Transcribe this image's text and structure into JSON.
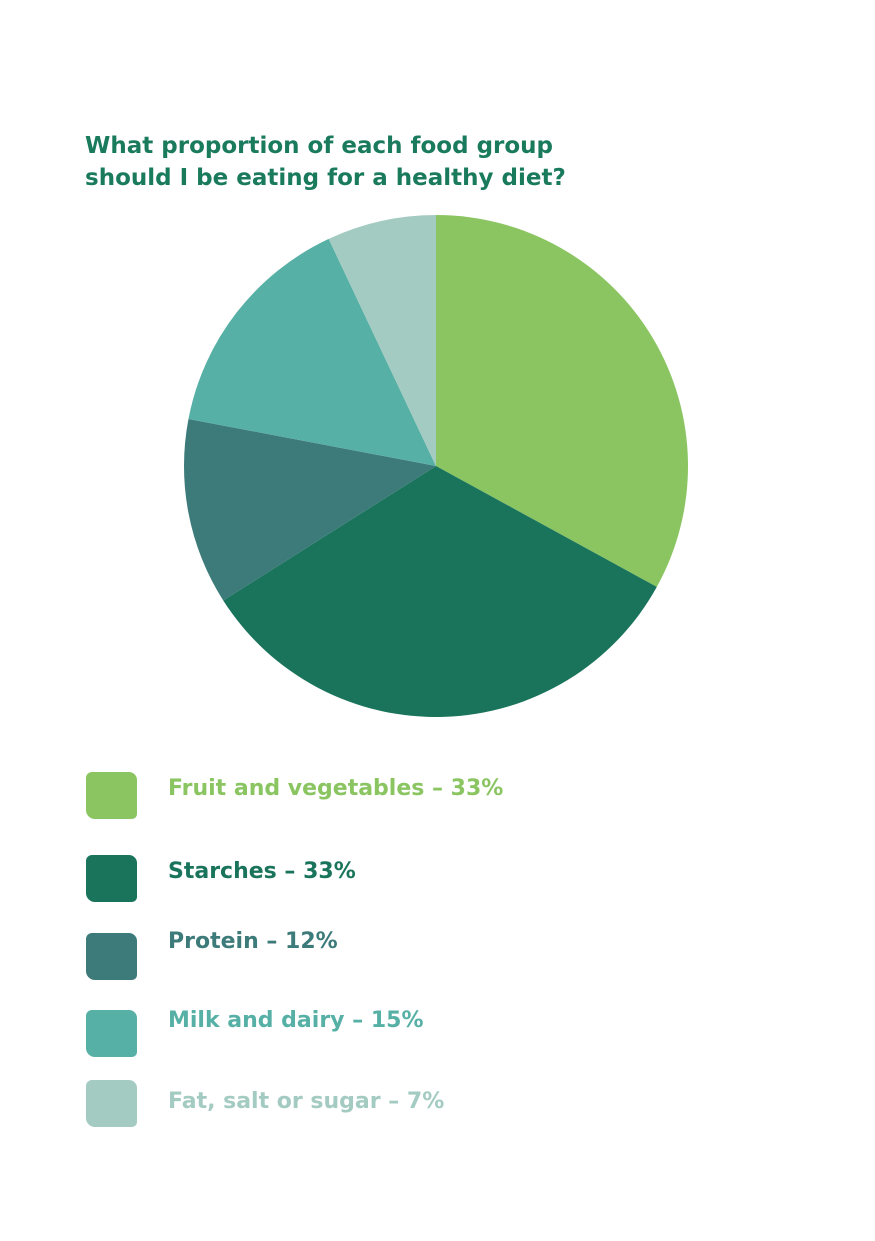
{
  "title": "What proportion of each food group should I be eating for a healthy diet?",
  "chart_data": {
    "type": "pie",
    "title": "What proportion of each food group should I be eating for a healthy diet?",
    "slices": [
      {
        "label": "Fruit and vegetables – 33%",
        "value": 33,
        "color": "#8ac562"
      },
      {
        "label": "Starches – 33%",
        "value": 33,
        "color": "#1a745c"
      },
      {
        "label": "Protein – 12%",
        "value": 12,
        "color": "#3d7a7a"
      },
      {
        "label": "Milk and dairy – 15%",
        "value": 15,
        "color": "#56b0a5"
      },
      {
        "label": "Fat, salt or sugar – 7%",
        "value": 7,
        "color": "#a4cbc2"
      }
    ],
    "start": "top",
    "direction": "clockwise",
    "legend_position": "bottom"
  }
}
